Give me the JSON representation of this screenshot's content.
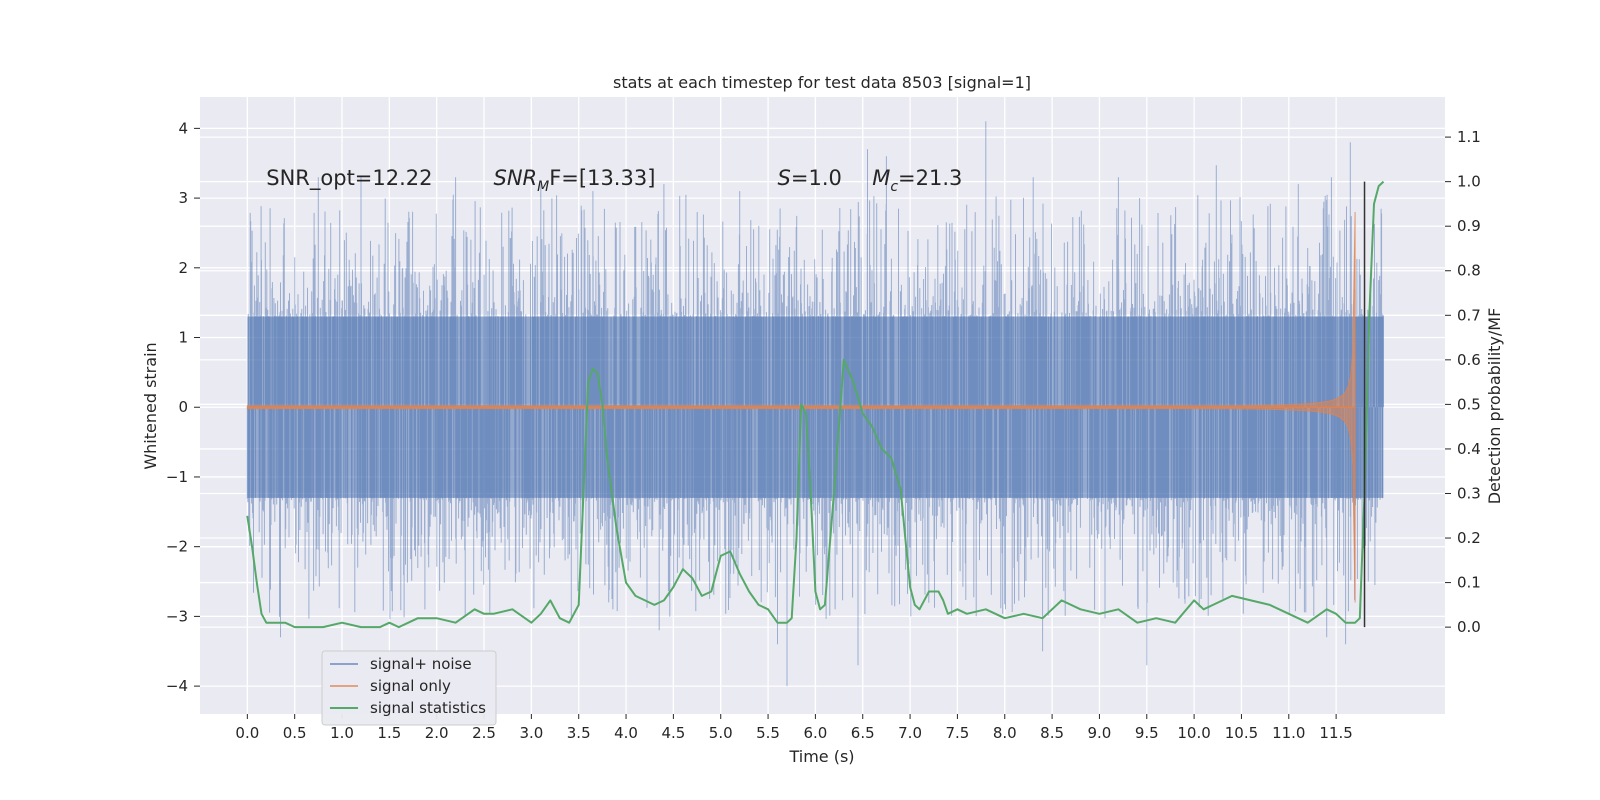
{
  "chart_data": {
    "type": "line",
    "title": "stats at each timestep for test data 8503 [signal=1]",
    "xlabel": "Time (s)",
    "ylabel": "Whitened strain",
    "y2label": "Detection probability/MF",
    "xlim": [
      -0.5,
      12.65
    ],
    "ylim": [
      -4.4,
      4.45
    ],
    "y2lim": [
      -0.195,
      1.19
    ],
    "xticks": [
      0.0,
      0.5,
      1.0,
      1.5,
      2.0,
      2.5,
      3.0,
      3.5,
      4.0,
      4.5,
      5.0,
      5.5,
      6.0,
      6.5,
      7.0,
      7.5,
      8.0,
      8.5,
      9.0,
      9.5,
      10.0,
      10.5,
      11.0,
      11.5
    ],
    "xtick_labels": [
      "0.0",
      "0.5",
      "1.0",
      "1.5",
      "2.0",
      "2.5",
      "3.0",
      "3.5",
      "4.0",
      "4.5",
      "5.0",
      "5.5",
      "6.0",
      "6.5",
      "7.0",
      "7.5",
      "8.0",
      "8.5",
      "9.0",
      "9.5",
      "10.0",
      "10.5",
      "11.0",
      "11.5"
    ],
    "yticks": [
      4,
      3,
      2,
      1,
      0,
      -1,
      -2,
      -3,
      -4
    ],
    "ytick_labels": [
      "4",
      "3",
      "2",
      "1",
      "0",
      "−1",
      "−2",
      "−3",
      "−4"
    ],
    "y2ticks": [
      1.1,
      1.0,
      0.9,
      0.8,
      0.7,
      0.6,
      0.5,
      0.4,
      0.3,
      0.2,
      0.1,
      0.0
    ],
    "y2tick_labels": [
      "1.1",
      "1.0",
      "0.9",
      "0.8",
      "0.7",
      "0.6",
      "0.5",
      "0.4",
      "0.3",
      "0.2",
      "0.1",
      "0.0"
    ],
    "grid": true,
    "legend_position": "lower-left",
    "series": [
      {
        "name": "signal+ noise",
        "color": "#4c72b0",
        "x_range": [
          0.0,
          12.0
        ],
        "core_amplitude": 1.3,
        "spike_peaks": [
          {
            "x": 0.75,
            "y": 3.3
          },
          {
            "x": 1.2,
            "y": 3.3
          },
          {
            "x": 2.2,
            "y": 3.3
          },
          {
            "x": 3.1,
            "y": 3.2
          },
          {
            "x": 3.65,
            "y": 3.1
          },
          {
            "x": 4.4,
            "y": 3.2
          },
          {
            "x": 5.2,
            "y": 3.1
          },
          {
            "x": 6.55,
            "y": 3.7
          },
          {
            "x": 6.75,
            "y": 3.6
          },
          {
            "x": 7.8,
            "y": 4.1
          },
          {
            "x": 8.3,
            "y": 3.3
          },
          {
            "x": 9.2,
            "y": 3.3
          },
          {
            "x": 11.1,
            "y": 3.2
          },
          {
            "x": 11.45,
            "y": 3.3
          },
          {
            "x": 11.65,
            "y": 3.8
          },
          {
            "x": 4.35,
            "y": -3.2
          },
          {
            "x": 5.6,
            "y": -3.4
          },
          {
            "x": 5.7,
            "y": -4.0
          },
          {
            "x": 6.45,
            "y": -3.7
          },
          {
            "x": 8.4,
            "y": -3.5
          },
          {
            "x": 9.5,
            "y": -3.7
          },
          {
            "x": 11.4,
            "y": -3.3
          },
          {
            "x": 11.6,
            "y": -3.4
          },
          {
            "x": 0.35,
            "y": -3.3
          }
        ]
      },
      {
        "name": "signal only",
        "color": "#dd8452",
        "chirp_end": 11.7,
        "amplitude_end": 2.8
      },
      {
        "name": "signal statistics",
        "color": "#55a868",
        "axis": "right",
        "x": [
          0.0,
          0.05,
          0.1,
          0.15,
          0.2,
          0.3,
          0.4,
          0.5,
          0.6,
          0.8,
          1.0,
          1.2,
          1.4,
          1.5,
          1.6,
          1.7,
          1.8,
          1.9,
          2.0,
          2.2,
          2.4,
          2.5,
          2.6,
          2.8,
          3.0,
          3.1,
          3.2,
          3.3,
          3.4,
          3.5,
          3.6,
          3.65,
          3.7,
          3.75,
          3.8,
          3.9,
          4.0,
          4.1,
          4.2,
          4.3,
          4.4,
          4.5,
          4.6,
          4.7,
          4.8,
          4.9,
          5.0,
          5.1,
          5.2,
          5.3,
          5.4,
          5.5,
          5.6,
          5.7,
          5.75,
          5.8,
          5.85,
          5.9,
          5.95,
          6.0,
          6.05,
          6.1,
          6.2,
          6.3,
          6.4,
          6.5,
          6.6,
          6.7,
          6.8,
          6.9,
          6.95,
          7.0,
          7.05,
          7.1,
          7.2,
          7.3,
          7.35,
          7.4,
          7.5,
          7.6,
          7.8,
          8.0,
          8.2,
          8.4,
          8.6,
          8.8,
          9.0,
          9.2,
          9.4,
          9.6,
          9.8,
          10.0,
          10.1,
          10.2,
          10.4,
          10.6,
          10.8,
          11.0,
          11.2,
          11.4,
          11.5,
          11.6,
          11.7,
          11.75,
          11.8,
          11.85,
          11.9,
          11.95,
          12.0
        ],
        "y": [
          0.25,
          0.18,
          0.1,
          0.03,
          0.01,
          0.01,
          0.01,
          0.0,
          0.0,
          0.0,
          0.01,
          0.0,
          0.0,
          0.01,
          0.0,
          0.01,
          0.02,
          0.02,
          0.02,
          0.01,
          0.04,
          0.03,
          0.03,
          0.04,
          0.01,
          0.03,
          0.06,
          0.02,
          0.01,
          0.05,
          0.55,
          0.58,
          0.57,
          0.5,
          0.38,
          0.22,
          0.1,
          0.07,
          0.06,
          0.05,
          0.06,
          0.09,
          0.13,
          0.11,
          0.07,
          0.08,
          0.16,
          0.17,
          0.12,
          0.08,
          0.05,
          0.04,
          0.01,
          0.01,
          0.02,
          0.2,
          0.5,
          0.48,
          0.3,
          0.08,
          0.04,
          0.05,
          0.31,
          0.6,
          0.55,
          0.48,
          0.45,
          0.4,
          0.38,
          0.31,
          0.2,
          0.09,
          0.05,
          0.04,
          0.08,
          0.08,
          0.06,
          0.03,
          0.04,
          0.03,
          0.04,
          0.02,
          0.03,
          0.02,
          0.06,
          0.04,
          0.03,
          0.04,
          0.01,
          0.02,
          0.01,
          0.06,
          0.04,
          0.05,
          0.07,
          0.06,
          0.05,
          0.03,
          0.01,
          0.04,
          0.03,
          0.01,
          0.01,
          0.02,
          0.3,
          0.7,
          0.95,
          0.99,
          1.0
        ],
        "marker_line_x": 11.8
      }
    ],
    "annotations": [
      {
        "id": "snr_opt",
        "text": "SNR_opt=12.22",
        "x": 0.2,
        "y": 3.3
      },
      {
        "id": "snr_mf",
        "base": "SNR",
        "sub": "M",
        "suffix": "F=[13.33]",
        "italic": true,
        "x": 2.6,
        "y": 3.3
      },
      {
        "id": "s",
        "base": "S",
        "suffix": "=1.0",
        "italic": true,
        "x": 5.6,
        "y": 3.3
      },
      {
        "id": "mc",
        "base": "M",
        "sub": "c",
        "suffix": "=21.3",
        "italic": true,
        "x": 6.6,
        "y": 3.3
      }
    ]
  }
}
